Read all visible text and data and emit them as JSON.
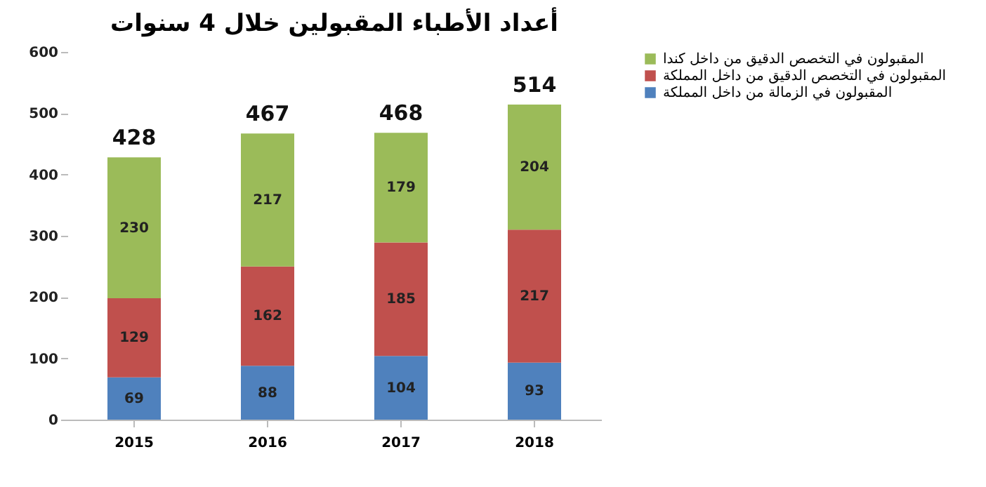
{
  "chart_data": {
    "type": "bar",
    "title": "أعداد الأطباء المقبولين خلال 4 سنوات",
    "categories": [
      "2015",
      "2016",
      "2017",
      "2018"
    ],
    "stacked": true,
    "series": [
      {
        "name": "المقبولون في الزمالة من داخل المملكة",
        "color": "#4f81bd",
        "values": [
          69,
          88,
          104,
          93
        ]
      },
      {
        "name": "المقبولون في التخصص الدقيق من داخل المملكة",
        "color": "#c0504d",
        "values": [
          129,
          162,
          185,
          217
        ]
      },
      {
        "name": "المقبولون في التخصص الدقيق من داخل كندا",
        "color": "#9bbb59",
        "values": [
          230,
          217,
          179,
          204
        ]
      }
    ],
    "totals": [
      "428",
      "467",
      "468",
      "514"
    ],
    "data_labels": true,
    "ylim": [
      0,
      600
    ],
    "yticks": [
      0,
      100,
      200,
      300,
      400,
      500,
      600
    ],
    "grid": false,
    "legend": "right"
  }
}
